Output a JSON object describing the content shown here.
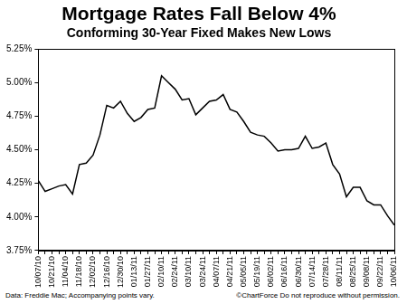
{
  "chart_data": {
    "type": "line",
    "title": "Mortgage Rates Fall Below 4%",
    "subtitle": "Conforming 30-Year Fixed Makes New Lows",
    "annotations": [
      "Data: Freddie Mac; Accompanying points vary.",
      "©ChartForce  Do not reproduce without permission."
    ],
    "categories": [
      "10/07/10",
      null,
      "10/21/10",
      null,
      "11/04/10",
      null,
      "11/18/10",
      null,
      "12/02/10",
      null,
      "12/16/10",
      null,
      "12/30/10",
      null,
      "01/13/11",
      null,
      "01/27/11",
      null,
      "02/10/11",
      null,
      "02/24/11",
      null,
      "03/10/11",
      null,
      "03/24/11",
      null,
      "04/07/11",
      null,
      "04/21/11",
      null,
      "05/05/11",
      null,
      "05/19/11",
      null,
      "06/02/11",
      null,
      "06/16/11",
      null,
      "06/30/11",
      null,
      "07/14/11",
      null,
      "07/28/11",
      null,
      "08/11/11",
      null,
      "08/25/11",
      null,
      "09/08/11",
      null,
      "09/22/11",
      null,
      "10/06/11"
    ],
    "values": [
      4.27,
      4.19,
      4.21,
      4.23,
      4.24,
      4.17,
      4.39,
      4.4,
      4.46,
      4.61,
      4.83,
      4.81,
      4.86,
      4.77,
      4.71,
      4.74,
      4.8,
      4.81,
      5.05,
      5.0,
      4.95,
      4.87,
      4.88,
      4.76,
      4.81,
      4.86,
      4.87,
      4.91,
      4.8,
      4.78,
      4.71,
      4.63,
      4.61,
      4.6,
      4.55,
      4.49,
      4.5,
      4.5,
      4.51,
      4.6,
      4.51,
      4.52,
      4.55,
      4.39,
      4.32,
      4.15,
      4.22,
      4.22,
      4.12,
      4.09,
      4.09,
      4.01,
      3.94
    ],
    "color": "#000000",
    "marker": "none",
    "line_style": "solid",
    "ylim": [
      3.75,
      5.25
    ],
    "yticks": [
      {
        "value": 3.75,
        "label": "3.75%"
      },
      {
        "value": 4.0,
        "label": "4.00%"
      },
      {
        "value": 4.25,
        "label": "4.25%"
      },
      {
        "value": 4.5,
        "label": "4.50%"
      },
      {
        "value": 4.75,
        "label": "4.75%"
      },
      {
        "value": 5.0,
        "label": "5.00%"
      },
      {
        "value": 5.25,
        "label": "5.25%"
      }
    ],
    "grid": false,
    "legend": "none"
  }
}
